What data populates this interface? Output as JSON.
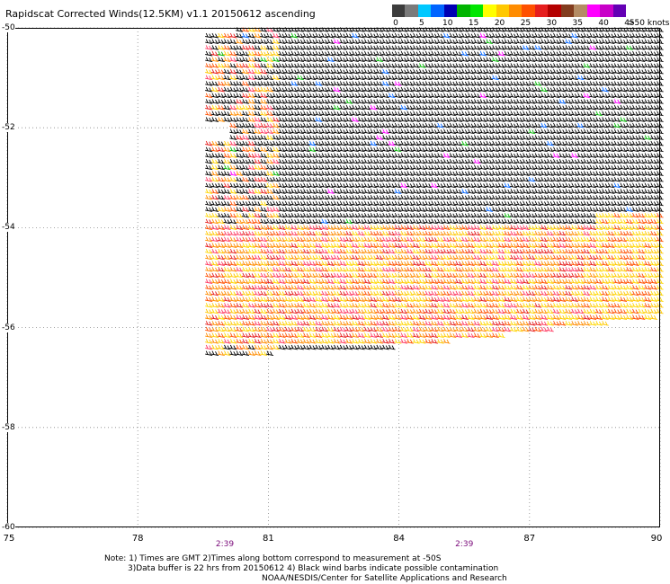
{
  "title": "Rapidscat Corrected Winds(12.5KM) v1.1 20150612 ascending",
  "colorbar": {
    "unit": ">50 knots",
    "ticks": [
      "0",
      "5",
      "10",
      "15",
      "20",
      "25",
      "30",
      "35",
      "40",
      "45"
    ],
    "colors": [
      "#3c3c3c",
      "#7a7a7a",
      "#00c8ff",
      "#0064ff",
      "#0000b4",
      "#00b400",
      "#00e600",
      "#ffff00",
      "#ffc800",
      "#ff8c00",
      "#ff5000",
      "#e61e1e",
      "#b40000",
      "#823c1e",
      "#b48c64",
      "#ff00ff",
      "#c800c8",
      "#6400b4"
    ]
  },
  "chart_data": {
    "type": "wind-barb map",
    "xlim": [
      75,
      90
    ],
    "ylim": [
      -60,
      -50
    ],
    "x_ticks": [
      "75",
      "78",
      "81",
      "84",
      "87",
      "90"
    ],
    "y_ticks": [
      "-50",
      "-52",
      "-54",
      "-56",
      "-58",
      "-60"
    ],
    "grid": true,
    "swath": {
      "upper": {
        "lon_start": 79.5,
        "lat_top": -50.0,
        "lat_bottom": -56.6
      },
      "notch_lon": 80.0,
      "notch_lat": [
        -51.9,
        -52.3
      ],
      "bottom_edge": [
        [
          79.5,
          -56.6
        ],
        [
          84,
          -56.4
        ],
        [
          87,
          -56.1
        ],
        [
          90,
          -55.8
        ]
      ]
    },
    "colored_band_lat": [
      -54.0,
      -56.0
    ],
    "time_labels": [
      {
        "lon": 80.0,
        "text": "2:39"
      },
      {
        "lon": 85.5,
        "text": "2:39"
      }
    ]
  },
  "notes": [
    "Note: 1) Times are GMT 2)Times along bottom correspond to measurement at -50S",
    "3)Data buffer is 22 hrs from 20150612 4) Black wind barbs indicate possible contamination",
    "NOAA/NESDIS/Center for Satellite Applications and Research"
  ]
}
